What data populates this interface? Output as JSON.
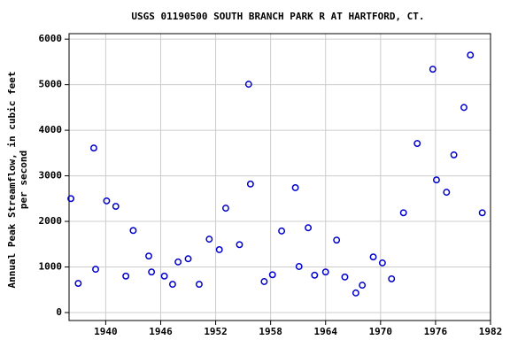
{
  "chart_data": {
    "type": "scatter",
    "title": "USGS 01190500 SOUTH BRANCH PARK R AT HARTFORD, CT.",
    "ylabel": [
      "Annual Peak Streamflow, in cubic feet",
      "per second"
    ],
    "color": "#0000cc",
    "grid": true,
    "x": [
      1936.2,
      1937.0,
      1938.7,
      1938.9,
      1940.1,
      1941.1,
      1942.2,
      1943.0,
      1944.7,
      1945.0,
      1946.4,
      1947.3,
      1947.9,
      1949.0,
      1950.2,
      1951.3,
      1952.4,
      1953.1,
      1954.6,
      1955.6,
      1955.8,
      1957.3,
      1958.2,
      1959.2,
      1960.7,
      1961.1,
      1962.1,
      1962.8,
      1964.0,
      1965.2,
      1966.1,
      1967.3,
      1968.0,
      1969.2,
      1970.2,
      1971.2,
      1972.5,
      1974.0,
      1975.7,
      1976.1,
      1977.2,
      1978.0,
      1979.1,
      1979.8,
      1981.1
    ],
    "values": [
      2500,
      640,
      3610,
      950,
      2450,
      2330,
      800,
      1800,
      1240,
      890,
      800,
      620,
      1110,
      1180,
      620,
      1610,
      1380,
      2290,
      1490,
      5010,
      2820,
      680,
      830,
      1790,
      2740,
      1010,
      1860,
      820,
      890,
      1590,
      780,
      430,
      600,
      1220,
      1090,
      740,
      2190,
      3710,
      5340,
      2910,
      2640,
      3460,
      4500,
      5650,
      2190
    ],
    "xlim": [
      1936,
      1982
    ],
    "xticks": [
      1940,
      1946,
      1952,
      1958,
      1964,
      1970,
      1976,
      1982
    ],
    "ylim": [
      -175,
      6120
    ],
    "yticks": [
      0,
      1000,
      2000,
      3000,
      4000,
      5000,
      6000
    ]
  }
}
